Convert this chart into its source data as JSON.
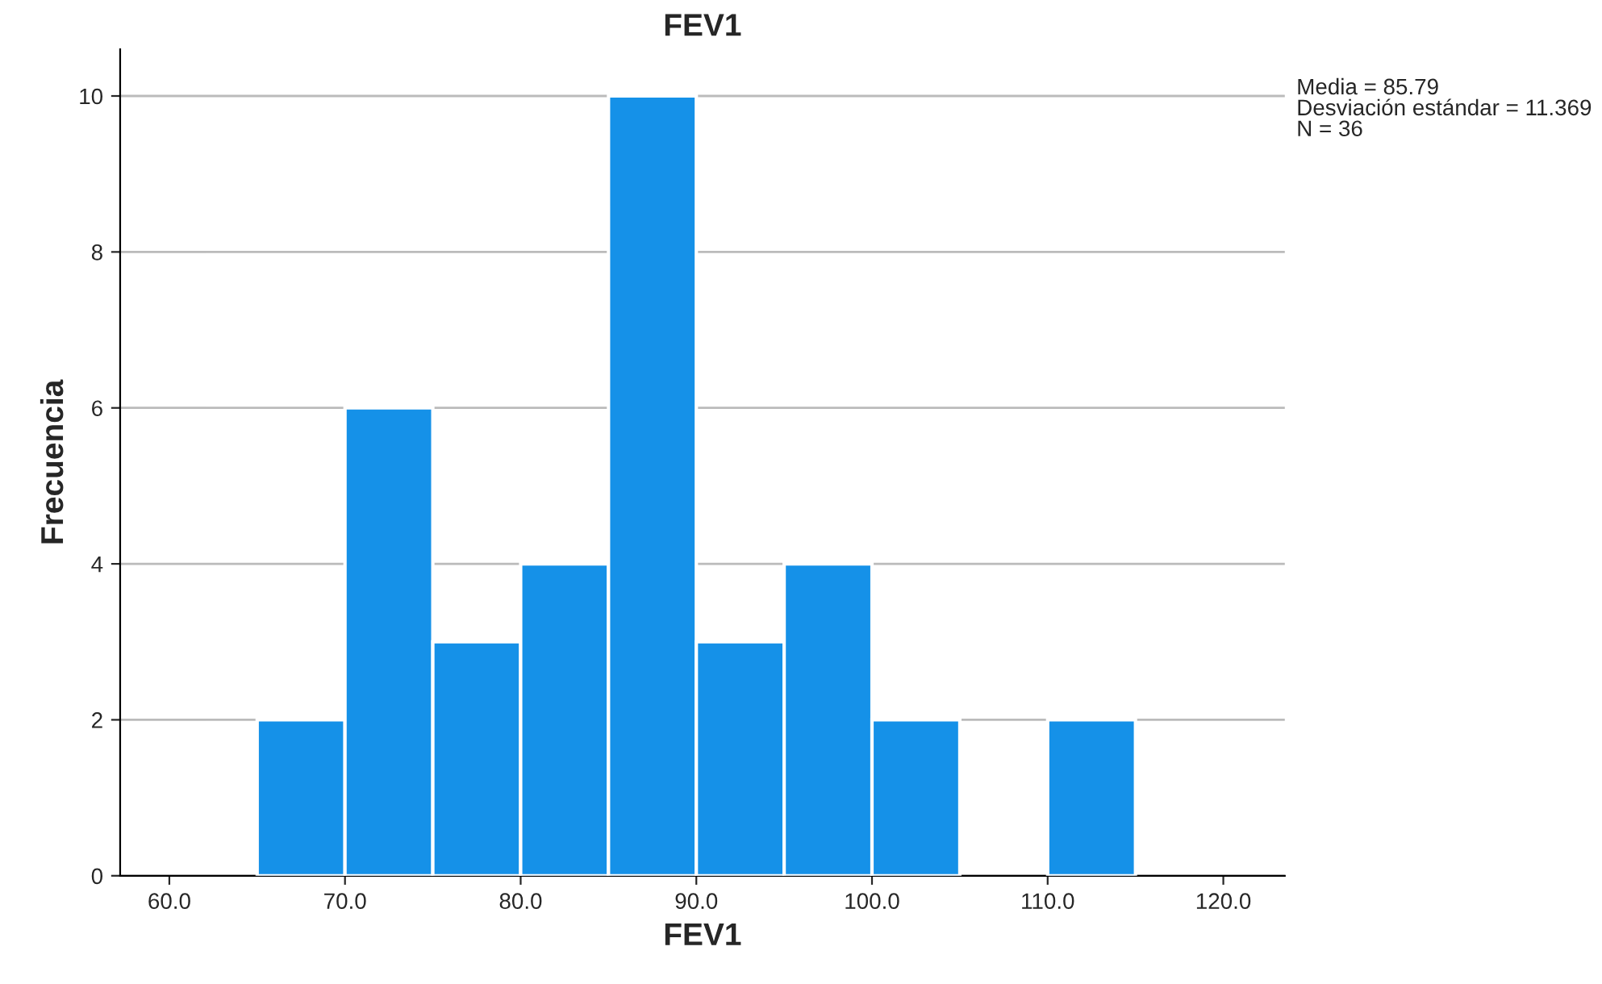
{
  "chart_data": {
    "type": "histogram",
    "title": "FEV1",
    "xlabel": "FEV1",
    "ylabel": "Frecuencia",
    "bins": [
      65,
      70,
      75,
      80,
      85,
      90,
      95,
      100,
      105,
      110,
      115
    ],
    "values": [
      2,
      6,
      3,
      4,
      10,
      3,
      4,
      2,
      0,
      2
    ],
    "color": "#1591e8",
    "xlim": [
      57.2,
      123.5
    ],
    "ylim": [
      0,
      10.6
    ],
    "xticks": [
      {
        "value": 60,
        "label": "60.0"
      },
      {
        "value": 70,
        "label": "70.0"
      },
      {
        "value": 80,
        "label": "80.0"
      },
      {
        "value": 90,
        "label": "90.0"
      },
      {
        "value": 100,
        "label": "100.0"
      },
      {
        "value": 110,
        "label": "110.0"
      },
      {
        "value": 120,
        "label": "120.0"
      }
    ],
    "yticks": [
      0,
      2,
      4,
      6,
      8,
      10
    ],
    "grid": "y",
    "annotations": [
      "Media = 85.79",
      "Desviación estándar = 11.369",
      "N = 36"
    ]
  }
}
